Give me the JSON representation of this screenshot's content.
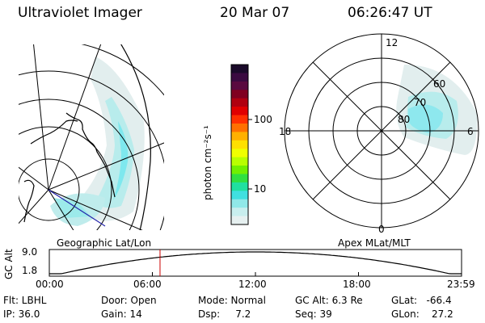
{
  "header": {
    "title": "Ultraviolet Imager",
    "date": "20 Mar 07",
    "time": "06:26:47 UT"
  },
  "colorbar": {
    "unit_label": "photon cm⁻²s⁻¹",
    "ticks": [
      "100",
      "10"
    ],
    "colors": [
      "#1a0a2a",
      "#3a0a40",
      "#5a0a40",
      "#800020",
      "#b00010",
      "#e00000",
      "#ff3000",
      "#ff7000",
      "#ffb000",
      "#ffe000",
      "#f0ff00",
      "#b8ff00",
      "#70f000",
      "#30e040",
      "#20e0a0",
      "#40e0e0",
      "#90e8e8",
      "#c8eeee",
      "#e6f0f0"
    ]
  },
  "left_panel": {
    "label": "Geographic Lat/Lon"
  },
  "polar_panel": {
    "label": "Apex MLat/MLT",
    "mlt_labels": {
      "top": "12",
      "left": "18",
      "right": "6",
      "bottom": "0"
    },
    "lat_labels": [
      "60",
      "70",
      "80"
    ]
  },
  "timeline": {
    "ylabel": "GC Alt",
    "ymax": "9.0",
    "ymin": "1.8",
    "xticks": [
      "00:00",
      "06:00",
      "12:00",
      "18:00",
      "23:59"
    ],
    "current_time_hours": 6.446
  },
  "info": {
    "filter": "Flt: LBHL",
    "ip": "IP: 36.0",
    "door": "Door: Open",
    "gain": "Gain: 14",
    "mode": "Mode: Normal",
    "dsp": "Dsp:     7.2",
    "gc_alt": "GC Alt: 6.3 Re",
    "seq": "Seq: 39",
    "glat": "GLat:   -66.4",
    "glon": "GLon:    27.2"
  }
}
